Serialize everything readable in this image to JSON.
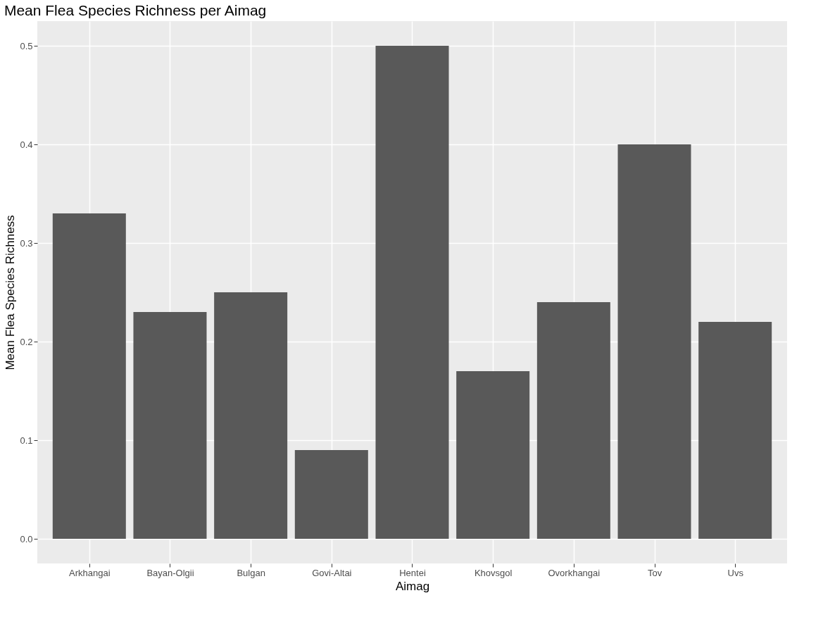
{
  "chart_data": {
    "type": "bar",
    "title": "Mean Flea Species Richness per Aimag",
    "xlabel": "Aimag",
    "ylabel": "Mean Flea Species Richness",
    "categories": [
      "Arkhangai",
      "Bayan-Olgii",
      "Bulgan",
      "Govi-Altai",
      "Hentei",
      "Khovsgol",
      "Ovorkhangai",
      "Tov",
      "Uvs"
    ],
    "values": [
      0.33,
      0.23,
      0.25,
      0.09,
      0.5,
      0.17,
      0.24,
      0.4,
      0.22
    ],
    "color": "#595959",
    "ylim": [
      -0.025,
      0.525
    ],
    "yticks": [
      {
        "value": 0,
        "label": "0.0"
      },
      0.1,
      0.2,
      0.3,
      0.4,
      0.5
    ],
    "grid": true
  }
}
